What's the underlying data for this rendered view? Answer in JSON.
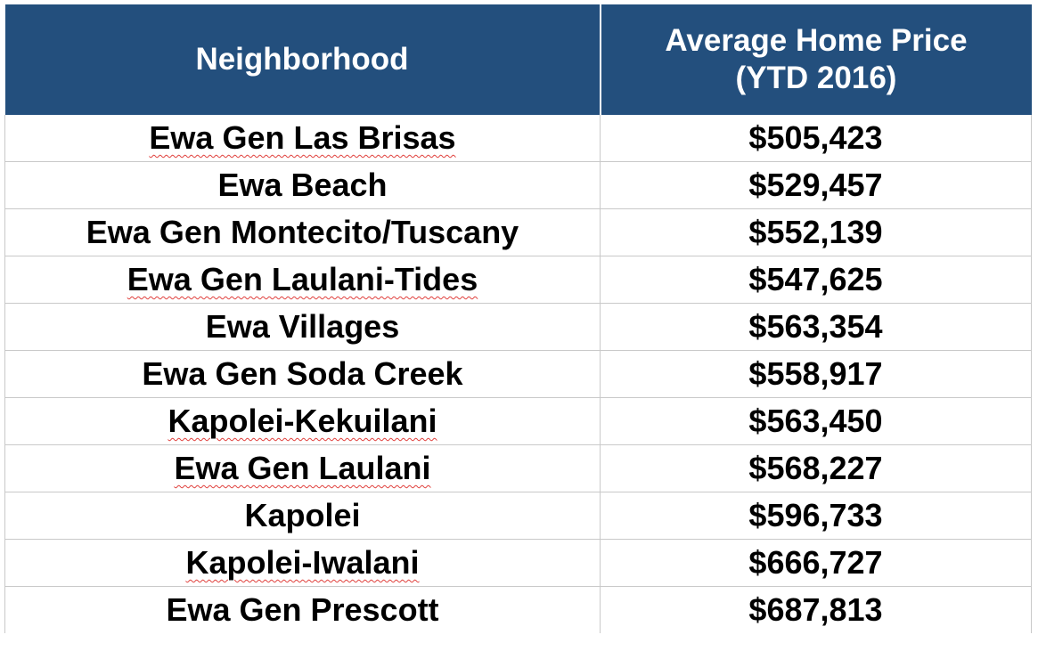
{
  "table": {
    "headers": {
      "neighborhood": "Neighborhood",
      "price_line1": "Average Home Price",
      "price_line2": "(YTD 2016)"
    },
    "rows": [
      {
        "neighborhood": "Ewa Gen Las Brisas",
        "price": "$505,423"
      },
      {
        "neighborhood": "Ewa Beach",
        "price": "$529,457"
      },
      {
        "neighborhood": "Ewa Gen Montecito/Tuscany",
        "price": "$552,139"
      },
      {
        "neighborhood": "Ewa Gen Laulani-Tides",
        "price": "$547,625"
      },
      {
        "neighborhood": "Ewa Villages",
        "price": "$563,354"
      },
      {
        "neighborhood": "Ewa Gen Soda Creek",
        "price": "$558,917"
      },
      {
        "neighborhood": "Kapolei-Kekuilani",
        "price": "$563,450"
      },
      {
        "neighborhood": "Ewa Gen Laulani",
        "price": "$568,227"
      },
      {
        "neighborhood": "Kapolei",
        "price": "$596,733"
      },
      {
        "neighborhood": "Kapolei-Iwalani",
        "price": "$666,727"
      },
      {
        "neighborhood": "Ewa Gen Prescott",
        "price": "$687,813"
      }
    ]
  },
  "colors": {
    "header_bg": "#234f7d",
    "header_text": "#ffffff",
    "grid": "#c9c9c9",
    "spellcheck": "#e0403c"
  }
}
